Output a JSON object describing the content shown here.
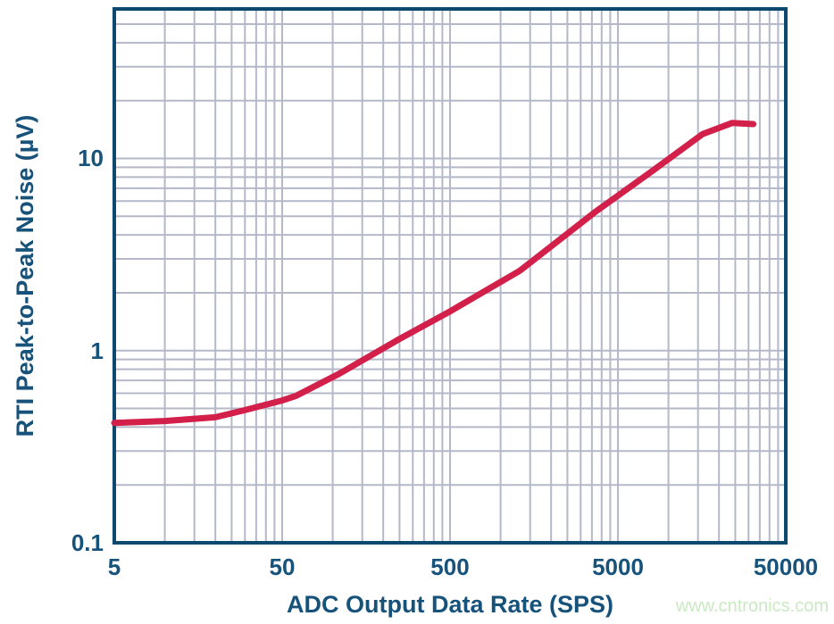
{
  "colors": {
    "background": "#ffffff",
    "curve": "#d2204a",
    "grid": "#b4b8c8",
    "axis_border": "#0d486e",
    "label": "#16527a",
    "watermark": "#cbe9c3"
  },
  "watermark": {
    "text": "www.cntronics.com"
  },
  "chart_data": {
    "type": "line",
    "title": "",
    "xlabel": "ADC Output Data Rate (SPS)",
    "ylabel": "RTI Peak-to-Peak Noise (µV)",
    "x_scale": "log",
    "y_scale": "log",
    "xlim": [
      5,
      50000
    ],
    "ylim": [
      0.1,
      60
    ],
    "x_ticks": [
      5,
      50,
      500,
      5000,
      50000
    ],
    "x_tick_labels": [
      "5",
      "50",
      "500",
      "5000",
      "50000"
    ],
    "y_ticks": [
      0.1,
      1,
      10
    ],
    "y_tick_labels": [
      "0.1",
      "1",
      "10"
    ],
    "grid": true,
    "legend": false,
    "series": [
      {
        "name": "RTI peak-to-peak noise",
        "points": [
          [
            5,
            0.42
          ],
          [
            10,
            0.43
          ],
          [
            20,
            0.45
          ],
          [
            30,
            0.49
          ],
          [
            50,
            0.55
          ],
          [
            60,
            0.58
          ],
          [
            110,
            0.76
          ],
          [
            250,
            1.15
          ],
          [
            500,
            1.6
          ],
          [
            1300,
            2.6
          ],
          [
            3700,
            5.3
          ],
          [
            8000,
            8.6
          ],
          [
            16000,
            13.4
          ],
          [
            24000,
            15.3
          ],
          [
            32000,
            15.1
          ]
        ]
      }
    ]
  }
}
